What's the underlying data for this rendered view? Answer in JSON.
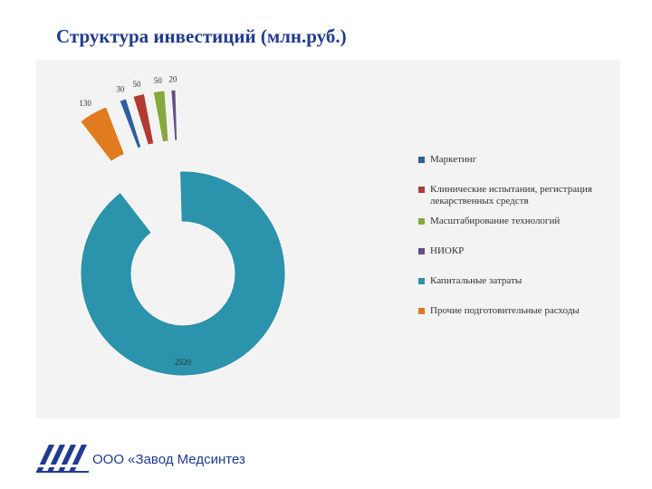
{
  "slide": {
    "title": "Структура инвестиций (млн.руб.)"
  },
  "footer": {
    "company": "ООО «Завод Медсинтез"
  },
  "chart_data": {
    "type": "doughnut",
    "title": "Структура инвестиций (млн.руб.)",
    "legend_position": "right",
    "series": [
      {
        "categories": [
          "Маркетинг",
          "Клинические испытания, регистрация лекарственных средств",
          "Масштабирование технологий",
          "НИОКР",
          "Капитальные затраты",
          "Прочие подготовительные расходы"
        ],
        "values": [
          30,
          50,
          50,
          20,
          2520,
          130
        ],
        "labels": [
          "30",
          "50",
          "50",
          "20",
          "2520",
          "130"
        ],
        "colors": [
          "#2e5f9e",
          "#b23a33",
          "#86a83d",
          "#6a4a8c",
          "#2b93ab",
          "#e07b1f"
        ]
      }
    ]
  }
}
